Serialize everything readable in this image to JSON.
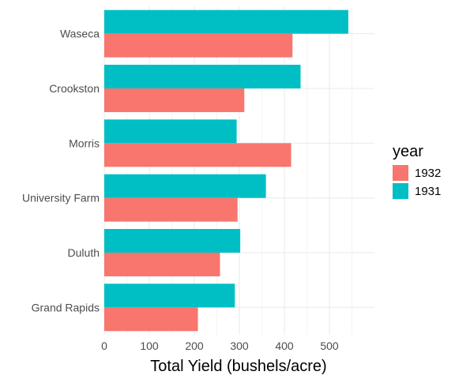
{
  "chart_data": {
    "type": "bar",
    "orientation": "horizontal",
    "categories": [
      "Waseca",
      "Crookston",
      "Morris",
      "University Farm",
      "Duluth",
      "Grand Rapids"
    ],
    "series": [
      {
        "name": "1931",
        "color": "#00BFC4",
        "values": [
          542,
          436,
          294,
          359,
          302,
          290
        ]
      },
      {
        "name": "1932",
        "color": "#F8766D",
        "values": [
          418,
          311,
          415,
          296,
          257,
          208
        ]
      }
    ],
    "xlabel": "Total Yield (bushels/acre)",
    "ylabel": "",
    "xlim": [
      0,
      600
    ],
    "xticks": [
      0,
      100,
      200,
      300,
      400,
      500
    ],
    "grid": true,
    "legend": {
      "title": "year",
      "position": "right",
      "items": [
        {
          "label": "1932",
          "color": "#F8766D"
        },
        {
          "label": "1931",
          "color": "#00BFC4"
        }
      ]
    }
  }
}
